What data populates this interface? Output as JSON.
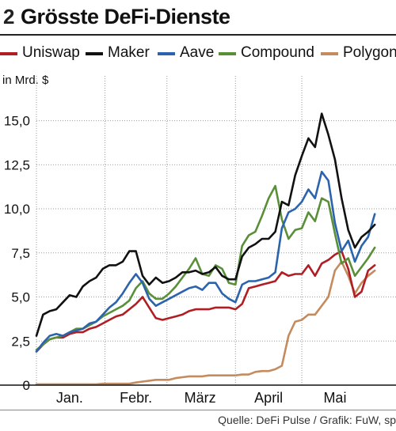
{
  "header": {
    "number": "2",
    "title": "Grösste DeFi-Dienste"
  },
  "unit": "in Mrd. $",
  "source": "Quelle: DeFi Pulse / Grafik: FuW, sp",
  "chart_data": {
    "type": "line",
    "title": "Grösste DeFi-Dienste",
    "ylabel": "in Mrd. $",
    "xlabel": "",
    "ylim": [
      0,
      17
    ],
    "yticks": [
      0,
      2.5,
      5,
      7.5,
      10,
      12.5,
      15
    ],
    "ytick_labels": [
      "0",
      "2,5",
      "5,0",
      "7,5",
      "10,0",
      "12,5",
      "15,0"
    ],
    "x_unit": "day of 2021 (1 = 1. Januar)",
    "xlim": [
      1,
      155
    ],
    "month_labels": [
      {
        "label": "Jan.",
        "x": 16
      },
      {
        "label": "Febr.",
        "x": 46
      },
      {
        "label": "März",
        "x": 75
      },
      {
        "label": "April",
        "x": 106
      },
      {
        "label": "Mai",
        "x": 136
      }
    ],
    "month_gridlines": [
      1,
      32,
      60,
      91,
      121
    ],
    "grid": "vertical dotted",
    "legend_position": "top",
    "x": [
      1,
      4,
      7,
      10,
      13,
      16,
      19,
      22,
      25,
      28,
      31,
      34,
      37,
      40,
      43,
      46,
      49,
      52,
      55,
      58,
      61,
      64,
      67,
      70,
      73,
      76,
      79,
      82,
      85,
      88,
      91,
      94,
      97,
      100,
      103,
      106,
      109,
      112,
      115,
      118,
      121,
      124,
      127,
      130,
      133,
      136,
      139,
      142,
      145,
      148,
      151,
      154
    ],
    "series": [
      {
        "name": "Uniswap",
        "color": "#b01e23",
        "values": [
          1.9,
          2.3,
          2.6,
          2.7,
          2.7,
          2.9,
          3.0,
          3.0,
          3.2,
          3.3,
          3.5,
          3.7,
          3.9,
          4.0,
          4.3,
          4.6,
          5.0,
          4.4,
          3.8,
          3.7,
          3.8,
          3.9,
          4.0,
          4.2,
          4.3,
          4.3,
          4.3,
          4.4,
          4.4,
          4.4,
          4.3,
          4.6,
          5.5,
          5.6,
          5.7,
          5.8,
          5.9,
          6.4,
          6.2,
          6.3,
          6.3,
          6.8,
          6.2,
          6.9,
          7.1,
          7.4,
          7.6,
          6.6,
          5.0,
          5.3,
          6.5,
          6.8
        ]
      },
      {
        "name": "Maker",
        "color": "#111111",
        "values": [
          2.8,
          4.0,
          4.2,
          4.3,
          4.7,
          5.1,
          5.0,
          5.6,
          5.9,
          6.1,
          6.6,
          6.8,
          6.8,
          7.0,
          7.6,
          7.6,
          6.2,
          5.7,
          6.1,
          5.8,
          5.9,
          6.1,
          6.4,
          6.4,
          6.5,
          6.3,
          6.4,
          6.7,
          6.2,
          6.0,
          6.0,
          7.3,
          7.8,
          8.0,
          8.3,
          8.3,
          8.7,
          10.4,
          10.2,
          11.9,
          13.0,
          14.0,
          13.5,
          15.4,
          14.2,
          12.8,
          10.6,
          8.8,
          7.8,
          8.4,
          8.7,
          9.1
        ]
      },
      {
        "name": "Aave",
        "color": "#2b63ad",
        "values": [
          1.9,
          2.4,
          2.8,
          2.9,
          2.8,
          3.0,
          3.1,
          3.2,
          3.5,
          3.6,
          4.0,
          4.4,
          4.7,
          5.2,
          5.8,
          6.3,
          5.8,
          4.9,
          4.5,
          4.7,
          4.9,
          5.1,
          5.3,
          5.5,
          5.6,
          5.4,
          5.8,
          5.8,
          5.2,
          4.9,
          4.7,
          5.7,
          5.9,
          5.9,
          6.0,
          6.1,
          6.4,
          8.9,
          9.8,
          10.0,
          10.4,
          11.1,
          10.6,
          12.1,
          11.6,
          9.2,
          7.6,
          8.2,
          7.0,
          7.9,
          8.4,
          9.7
        ]
      },
      {
        "name": "Compound",
        "color": "#5a8f3a",
        "values": [
          2.0,
          2.3,
          2.6,
          2.7,
          2.8,
          3.0,
          3.2,
          3.2,
          3.4,
          3.6,
          3.9,
          4.1,
          4.3,
          4.5,
          4.8,
          5.5,
          5.9,
          5.2,
          4.9,
          4.9,
          5.2,
          5.6,
          6.1,
          6.6,
          7.2,
          6.3,
          6.2,
          6.8,
          6.6,
          5.8,
          5.7,
          7.9,
          8.5,
          8.7,
          9.6,
          10.6,
          11.3,
          9.4,
          8.3,
          8.8,
          8.9,
          9.8,
          9.3,
          10.6,
          10.4,
          8.6,
          6.9,
          7.2,
          6.2,
          6.7,
          7.2,
          7.8
        ]
      },
      {
        "name": "Polygon",
        "color": "#c48b5e",
        "values": [
          0.05,
          0.05,
          0.05,
          0.05,
          0.05,
          0.05,
          0.05,
          0.05,
          0.05,
          0.05,
          0.08,
          0.08,
          0.08,
          0.08,
          0.08,
          0.15,
          0.2,
          0.25,
          0.3,
          0.3,
          0.3,
          0.4,
          0.45,
          0.5,
          0.5,
          0.5,
          0.55,
          0.55,
          0.55,
          0.55,
          0.55,
          0.6,
          0.6,
          0.75,
          0.8,
          0.8,
          0.9,
          1.1,
          2.8,
          3.6,
          3.7,
          4.0,
          4.0,
          4.5,
          5.0,
          6.5,
          7.0,
          6.2,
          5.2,
          5.8,
          6.2,
          6.5
        ]
      }
    ]
  }
}
